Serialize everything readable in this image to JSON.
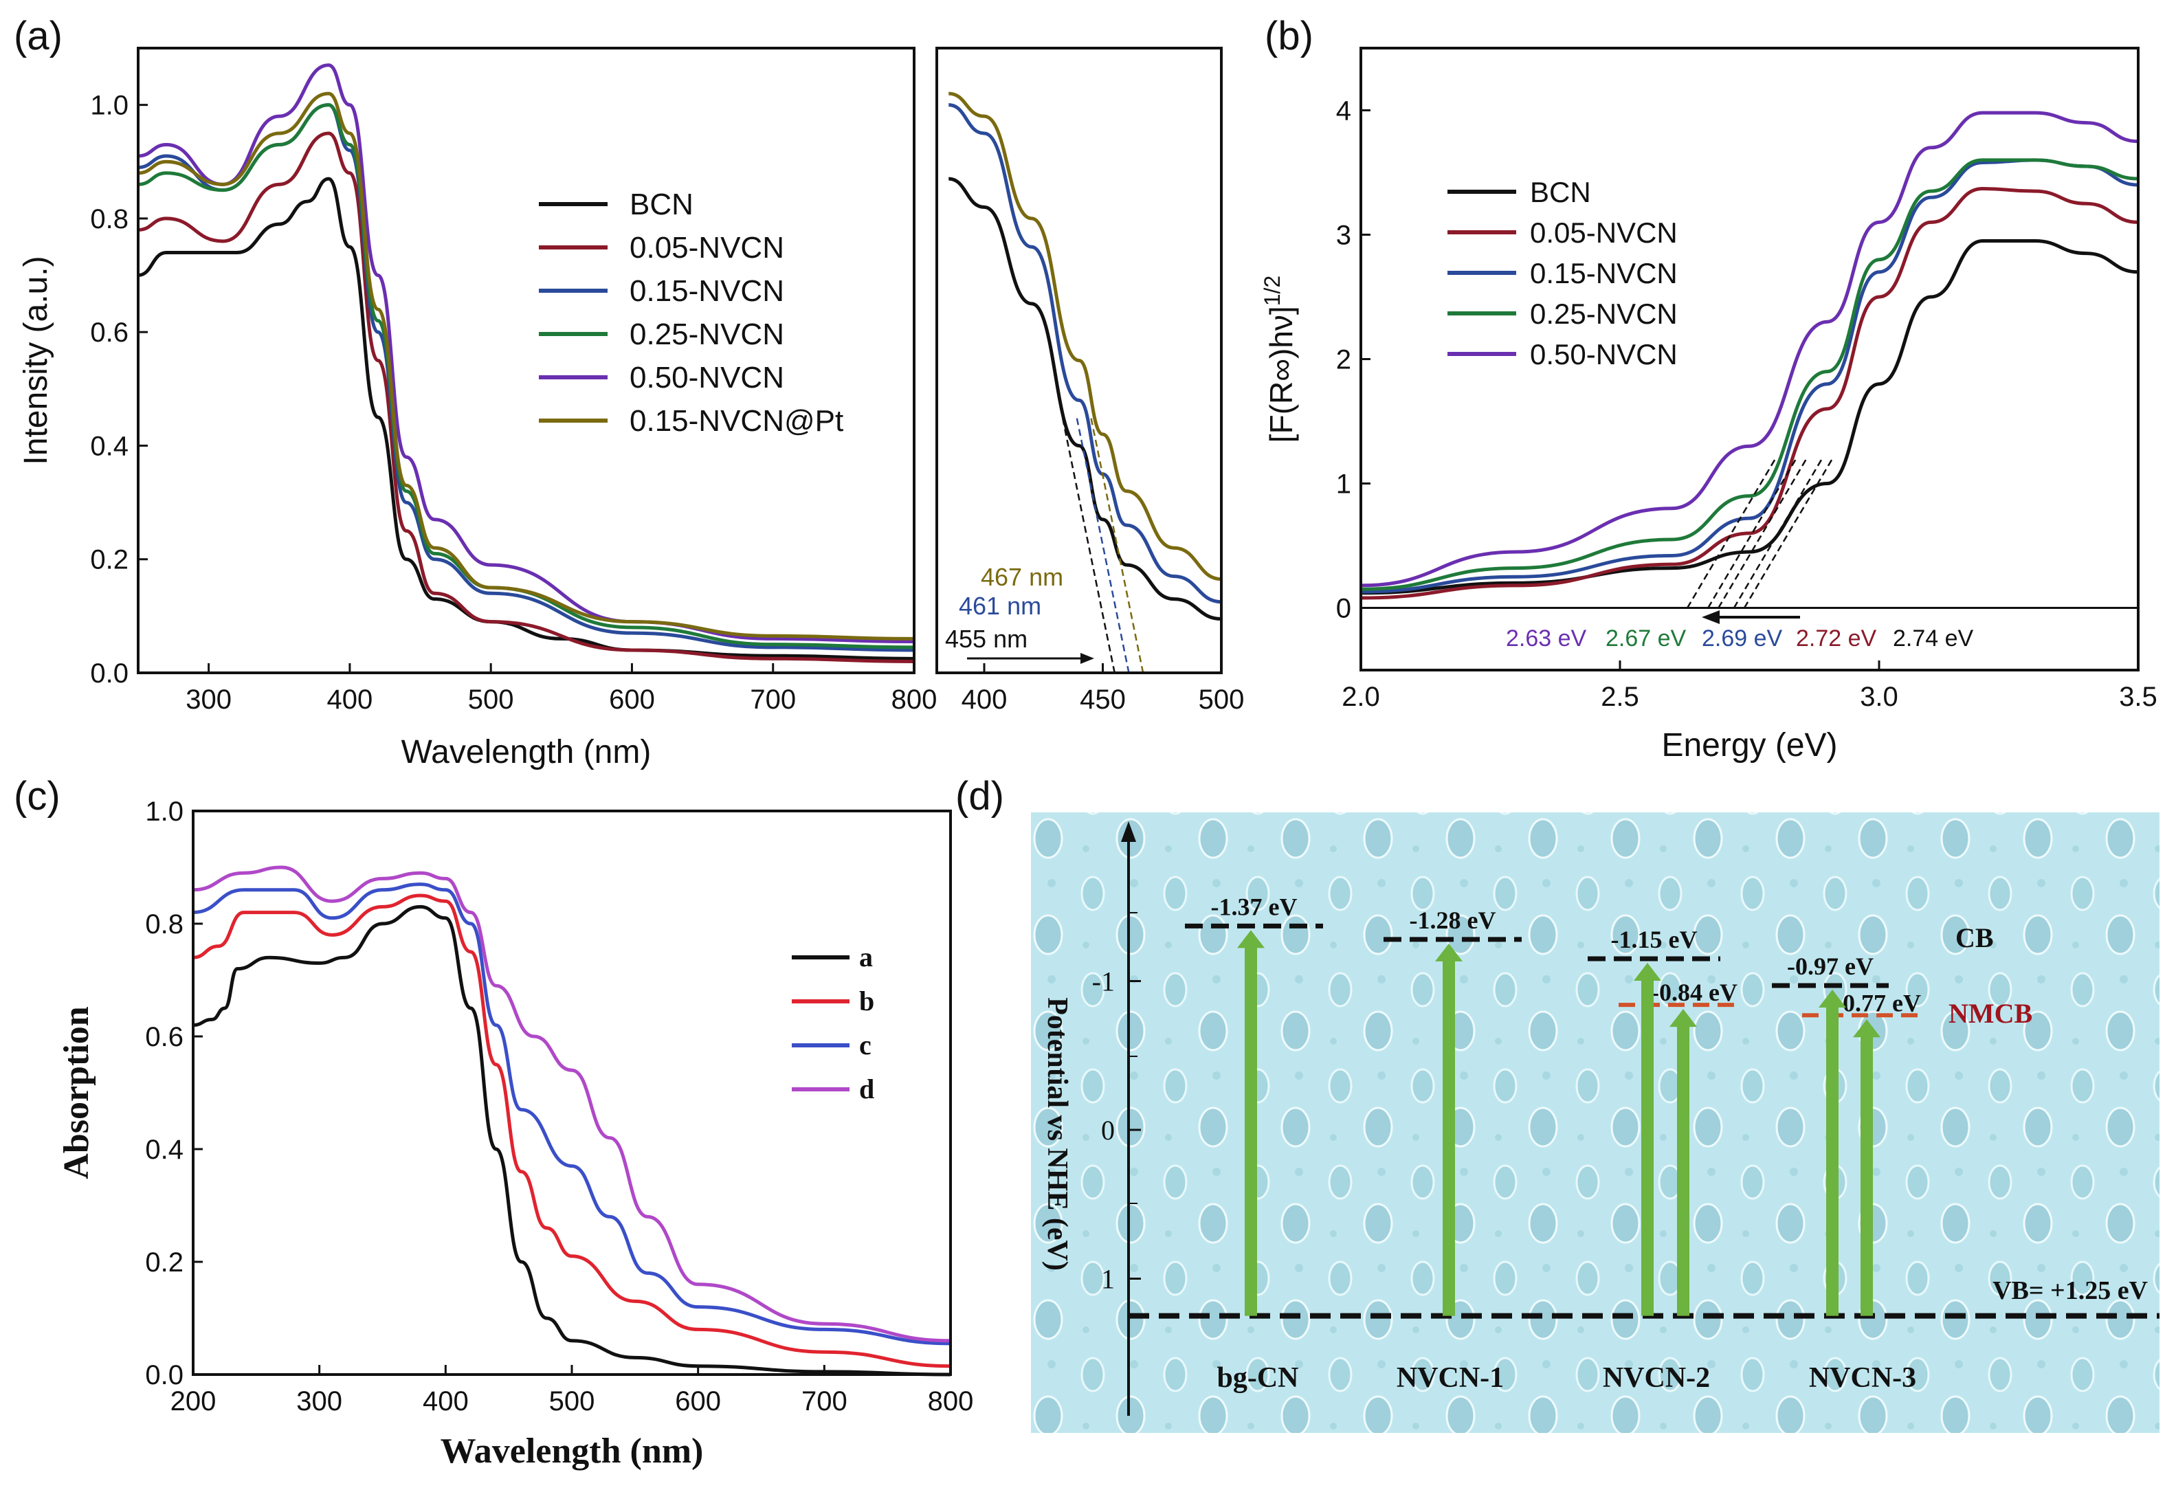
{
  "colors": {
    "black": "#111111",
    "red": "#8b1a2a",
    "blue": "#2a4a9a",
    "green": "#1f7a3a",
    "purple": "#6a2fb0",
    "olive": "#7a6a10",
    "c_red": "#e0242f",
    "c_blue": "#3a4fc8",
    "c_purple": "#b048c8",
    "arrow_green": "#6cb33f",
    "nmcb": "#d2522a",
    "bg_d": "#bfe6ee"
  },
  "chart_data": [
    {
      "panel_label": "(a)",
      "type": "line",
      "xlabel": "Wavelength (nm)",
      "ylabel": "Intensity (a.u.)",
      "xlim": [
        250,
        800
      ],
      "ylim": [
        0,
        1.1
      ],
      "xticks": [
        "300",
        "400",
        "500",
        "600",
        "700",
        "800"
      ],
      "yticks": [
        "0.0",
        "0.2",
        "0.4",
        "0.6",
        "0.8",
        "1.0"
      ],
      "legend_position": "center-right",
      "series": [
        {
          "name": "BCN",
          "color": "#111111",
          "x": [
            250,
            270,
            300,
            320,
            350,
            370,
            385,
            400,
            420,
            440,
            460,
            500,
            550,
            600,
            700,
            800
          ],
          "y": [
            0.7,
            0.74,
            0.74,
            0.74,
            0.79,
            0.83,
            0.87,
            0.75,
            0.45,
            0.2,
            0.13,
            0.09,
            0.06,
            0.04,
            0.03,
            0.025
          ]
        },
        {
          "name": "0.05-NVCN",
          "color": "#8b1a2a",
          "x": [
            250,
            270,
            310,
            350,
            385,
            400,
            420,
            440,
            460,
            500,
            600,
            700,
            800
          ],
          "y": [
            0.78,
            0.8,
            0.76,
            0.86,
            0.95,
            0.88,
            0.55,
            0.25,
            0.14,
            0.09,
            0.04,
            0.025,
            0.02
          ]
        },
        {
          "name": "0.15-NVCN",
          "color": "#2a4a9a",
          "x": [
            250,
            270,
            310,
            350,
            385,
            400,
            420,
            440,
            460,
            500,
            600,
            700,
            800
          ],
          "y": [
            0.89,
            0.91,
            0.85,
            0.93,
            1.0,
            0.92,
            0.6,
            0.3,
            0.2,
            0.14,
            0.07,
            0.045,
            0.04
          ]
        },
        {
          "name": "0.25-NVCN",
          "color": "#1f7a3a",
          "x": [
            250,
            270,
            310,
            350,
            385,
            400,
            420,
            440,
            460,
            500,
            600,
            700,
            800
          ],
          "y": [
            0.86,
            0.88,
            0.85,
            0.93,
            1.0,
            0.93,
            0.62,
            0.32,
            0.21,
            0.15,
            0.08,
            0.05,
            0.045
          ]
        },
        {
          "name": "0.50-NVCN",
          "color": "#6a2fb0",
          "x": [
            250,
            270,
            310,
            350,
            385,
            400,
            420,
            440,
            460,
            500,
            600,
            700,
            800
          ],
          "y": [
            0.91,
            0.93,
            0.86,
            0.98,
            1.07,
            1.0,
            0.7,
            0.38,
            0.27,
            0.19,
            0.09,
            0.06,
            0.055
          ]
        },
        {
          "name": "0.15-NVCN@Pt",
          "color": "#7a6a10",
          "x": [
            250,
            270,
            310,
            350,
            385,
            400,
            420,
            440,
            460,
            500,
            600,
            700,
            800
          ],
          "y": [
            0.88,
            0.9,
            0.86,
            0.95,
            1.02,
            0.95,
            0.64,
            0.33,
            0.22,
            0.15,
            0.09,
            0.065,
            0.06
          ]
        }
      ]
    },
    {
      "panel_label": "",
      "type": "line",
      "xlim": [
        380,
        500
      ],
      "ylim": [
        0,
        1.1
      ],
      "xticks": [
        "400",
        "450",
        "500"
      ],
      "series": [
        {
          "color": "#111111",
          "x": [
            385,
            400,
            420,
            440,
            450,
            460,
            480,
            500
          ],
          "y": [
            0.87,
            0.82,
            0.65,
            0.4,
            0.27,
            0.19,
            0.13,
            0.095
          ]
        },
        {
          "color": "#2a4a9a",
          "x": [
            385,
            400,
            420,
            440,
            450,
            460,
            480,
            500
          ],
          "y": [
            1.0,
            0.95,
            0.75,
            0.48,
            0.35,
            0.26,
            0.17,
            0.125
          ]
        },
        {
          "color": "#7a6a10",
          "x": [
            385,
            400,
            420,
            440,
            450,
            460,
            480,
            500
          ],
          "y": [
            1.02,
            0.98,
            0.8,
            0.55,
            0.42,
            0.32,
            0.22,
            0.165
          ]
        }
      ],
      "annotations": [
        {
          "text": "467 nm",
          "color": "#7a6a10",
          "edge": 467
        },
        {
          "text": "461 nm",
          "color": "#2a4a9a",
          "edge": 461
        },
        {
          "text": "455 nm",
          "color": "#111111",
          "edge": 455
        }
      ]
    },
    {
      "panel_label": "(b)",
      "type": "line",
      "xlabel": "Energy (eV)",
      "ylabel": "[F(R∞)hν]",
      "ylabel_sup": "1/2",
      "xlim": [
        2.0,
        3.5
      ],
      "ylim": [
        -0.5,
        4.5
      ],
      "xticks": [
        "2.0",
        "2.5",
        "3.0",
        "3.5"
      ],
      "yticks": [
        "0",
        "1",
        "2",
        "3",
        "4"
      ],
      "legend_position": "top-left",
      "series": [
        {
          "name": "BCN",
          "color": "#111111",
          "x": [
            2.0,
            2.3,
            2.6,
            2.75,
            2.9,
            3.0,
            3.1,
            3.2,
            3.3,
            3.4,
            3.5
          ],
          "y": [
            0.12,
            0.2,
            0.32,
            0.45,
            1.0,
            1.8,
            2.5,
            2.95,
            2.95,
            2.85,
            2.7
          ],
          "edge": 2.74
        },
        {
          "name": "0.05-NVCN",
          "color": "#8b1a2a",
          "x": [
            2.0,
            2.3,
            2.6,
            2.75,
            2.9,
            3.0,
            3.1,
            3.2,
            3.3,
            3.4,
            3.5
          ],
          "y": [
            0.08,
            0.18,
            0.35,
            0.6,
            1.6,
            2.5,
            3.1,
            3.37,
            3.35,
            3.25,
            3.1
          ],
          "edge": 2.72
        },
        {
          "name": "0.15-NVCN",
          "color": "#2a4a9a",
          "x": [
            2.0,
            2.3,
            2.6,
            2.75,
            2.9,
            3.0,
            3.1,
            3.2,
            3.3,
            3.4,
            3.5
          ],
          "y": [
            0.13,
            0.25,
            0.42,
            0.72,
            1.8,
            2.7,
            3.3,
            3.58,
            3.6,
            3.55,
            3.4
          ],
          "edge": 2.69
        },
        {
          "name": "0.25-NVCN",
          "color": "#1f7a3a",
          "x": [
            2.0,
            2.3,
            2.6,
            2.75,
            2.9,
            3.0,
            3.1,
            3.2,
            3.3,
            3.4,
            3.5
          ],
          "y": [
            0.15,
            0.32,
            0.55,
            0.9,
            1.9,
            2.8,
            3.35,
            3.6,
            3.6,
            3.55,
            3.45
          ],
          "edge": 2.67
        },
        {
          "name": "0.50-NVCN",
          "color": "#6a2fb0",
          "x": [
            2.0,
            2.3,
            2.6,
            2.75,
            2.9,
            3.0,
            3.1,
            3.2,
            3.3,
            3.4,
            3.5
          ],
          "y": [
            0.18,
            0.45,
            0.8,
            1.3,
            2.3,
            3.1,
            3.7,
            3.98,
            3.98,
            3.9,
            3.75
          ],
          "edge": 2.63
        }
      ],
      "annotations": [
        {
          "text": "2.63 eV",
          "color": "#6a2fb0"
        },
        {
          "text": "2.67 eV",
          "color": "#1f7a3a"
        },
        {
          "text": "2.69 eV",
          "color": "#2a4a9a"
        },
        {
          "text": "2.72 eV",
          "color": "#8b1a2a"
        },
        {
          "text": "2.74 eV",
          "color": "#111111"
        }
      ]
    },
    {
      "panel_label": "(c)",
      "type": "line",
      "xlabel": "Wavelength (nm)",
      "ylabel": "Absorption",
      "xlim": [
        200,
        800
      ],
      "ylim": [
        0,
        1.0
      ],
      "xticks": [
        "200",
        "300",
        "400",
        "500",
        "600",
        "700",
        "800"
      ],
      "yticks": [
        "0.0",
        "0.2",
        "0.4",
        "0.6",
        "0.8",
        "1.0"
      ],
      "legend_position": "center-right",
      "series": [
        {
          "name": "a",
          "color": "#111111",
          "x": [
            200,
            215,
            225,
            235,
            260,
            300,
            320,
            350,
            380,
            400,
            420,
            440,
            460,
            480,
            500,
            550,
            600,
            700,
            800
          ],
          "y": [
            0.62,
            0.63,
            0.65,
            0.72,
            0.74,
            0.73,
            0.74,
            0.8,
            0.83,
            0.81,
            0.65,
            0.4,
            0.2,
            0.1,
            0.06,
            0.03,
            0.015,
            0.005,
            0.0
          ]
        },
        {
          "name": "b",
          "color": "#e0242f",
          "x": [
            200,
            220,
            240,
            280,
            310,
            350,
            380,
            400,
            420,
            440,
            460,
            480,
            500,
            550,
            600,
            700,
            800
          ],
          "y": [
            0.74,
            0.76,
            0.82,
            0.82,
            0.78,
            0.83,
            0.85,
            0.84,
            0.75,
            0.55,
            0.36,
            0.26,
            0.21,
            0.13,
            0.08,
            0.04,
            0.015
          ]
        },
        {
          "name": "c",
          "color": "#3a4fc8",
          "x": [
            200,
            240,
            280,
            310,
            350,
            380,
            400,
            420,
            440,
            460,
            500,
            530,
            560,
            600,
            700,
            800
          ],
          "y": [
            0.82,
            0.86,
            0.86,
            0.81,
            0.86,
            0.87,
            0.86,
            0.8,
            0.62,
            0.47,
            0.37,
            0.28,
            0.18,
            0.12,
            0.08,
            0.055
          ]
        },
        {
          "name": "d",
          "color": "#b048c8",
          "x": [
            200,
            240,
            270,
            310,
            350,
            380,
            400,
            420,
            440,
            470,
            500,
            530,
            560,
            600,
            700,
            800
          ],
          "y": [
            0.86,
            0.89,
            0.9,
            0.84,
            0.88,
            0.89,
            0.88,
            0.82,
            0.69,
            0.6,
            0.54,
            0.42,
            0.28,
            0.16,
            0.09,
            0.06
          ]
        }
      ]
    },
    {
      "panel_label": "(d)",
      "type": "diagram",
      "ylabel": "Potential vs NHE (eV)",
      "yticks": [
        {
          "label": "-1",
          "value": -1
        },
        {
          "label": "0",
          "value": 0
        },
        {
          "label": "1",
          "value": 1
        }
      ],
      "cb_label": "CB",
      "nmcb_label": "NMCB",
      "vb_value": 1.25,
      "vb_label": "VB= +1.25 eV",
      "samples": [
        {
          "name": "bg-CN",
          "cb": -1.37,
          "cb_label": "-1.37 eV"
        },
        {
          "name": "NVCN-1",
          "cb": -1.28,
          "cb_label": "-1.28 eV"
        },
        {
          "name": "NVCN-2",
          "cb": -1.15,
          "cb_label": "-1.15 eV",
          "nmcb": -0.84,
          "nmcb_label": "-0.84 eV"
        },
        {
          "name": "NVCN-3",
          "cb": -0.97,
          "cb_label": "-0.97 eV",
          "nmcb": -0.77,
          "nmcb_label": "-0.77 eV"
        }
      ]
    }
  ]
}
